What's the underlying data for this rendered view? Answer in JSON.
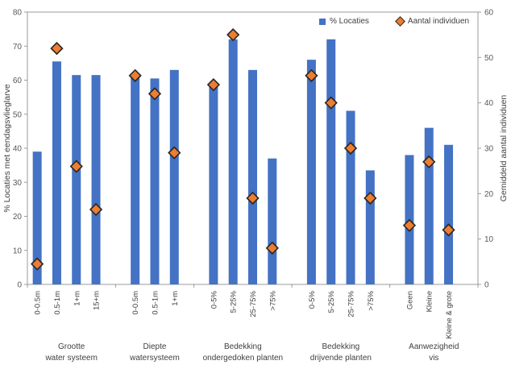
{
  "colors": {
    "bar": "#4472C4",
    "marker_fill": "#ED7D31",
    "marker_stroke": "#262626",
    "axis_text": "#595959",
    "label_text": "#404040",
    "axis_line": "#9b9b9b"
  },
  "legend": [
    {
      "label": "% Locaties",
      "marker": "square"
    },
    {
      "label": "Aantal individuen",
      "marker": "diamond"
    }
  ],
  "left_axis": {
    "title": "% Locaties met eendagsvlieglarve",
    "min": 0,
    "max": 80,
    "step": 10,
    "ticks": [
      0,
      10,
      20,
      30,
      40,
      50,
      60,
      70,
      80
    ]
  },
  "right_axis": {
    "title": "Gemiddeld aantal individuen",
    "min": 0,
    "max": 60,
    "step": 10,
    "ticks": [
      0,
      10,
      20,
      30,
      40,
      50,
      60
    ]
  },
  "chart_data": {
    "type": "bar",
    "note": "dual-axis: bars = % Locaties (left axis 0-80), diamond scatter = Aantal individuen (right axis 0-60)",
    "series_names": [
      "% Locaties",
      "Aantal individuen"
    ],
    "groups": [
      {
        "label_lines": [
          "Grootte",
          "water systeem"
        ],
        "categories": [
          "0-0.5m",
          "0.5-1m",
          "1+m",
          "15+m"
        ],
        "pct_locaties": [
          39,
          65.5,
          61.5,
          61.5
        ],
        "aantal_individuen": [
          4.5,
          52,
          26,
          16.5
        ]
      },
      {
        "label_lines": [
          "Diepte",
          "watersysteem"
        ],
        "categories": [
          "0-0.5m",
          "0.5-1m",
          "1+m"
        ],
        "pct_locaties": [
          62,
          60.5,
          63
        ],
        "aantal_individuen": [
          46,
          42,
          29
        ]
      },
      {
        "label_lines": [
          "Bedekking",
          "ondergedoken planten"
        ],
        "categories": [
          "0-5%",
          "5-25%",
          "25-75%",
          ">75%"
        ],
        "pct_locaties": [
          58,
          72,
          63,
          37
        ],
        "aantal_individuen": [
          44,
          55,
          19,
          8
        ]
      },
      {
        "label_lines": [
          "Bedekking",
          "drijvende planten"
        ],
        "categories": [
          "0-5%",
          "5-25%",
          "25-75%",
          ">75%"
        ],
        "pct_locaties": [
          66,
          72,
          51,
          33.5
        ],
        "aantal_individuen": [
          46,
          40,
          30,
          19
        ]
      },
      {
        "label_lines": [
          "Aanwezigheid",
          "vis"
        ],
        "categories": [
          "Geen",
          "Kleine",
          "Kleine & grote"
        ],
        "pct_locaties": [
          38,
          46,
          41
        ],
        "aantal_individuen": [
          13,
          27,
          12
        ]
      }
    ]
  }
}
